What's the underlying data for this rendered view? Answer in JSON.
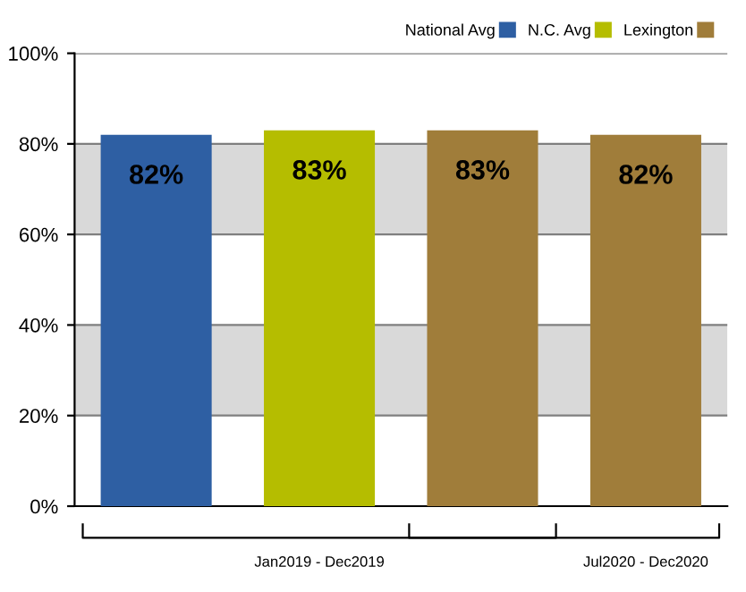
{
  "chart_data": {
    "type": "bar",
    "categories": [
      null,
      "Jan2019 - Dec2019",
      null,
      "Jul2020 - Dec2020"
    ],
    "series": [
      {
        "name": "National Avg",
        "color": "#2e5fa3",
        "values": [
          82,
          null,
          null,
          null
        ],
        "value_labels": [
          "82%",
          null,
          null,
          null
        ]
      },
      {
        "name": "N.C. Avg",
        "color": "#b5bd00",
        "values": [
          null,
          83,
          null,
          null
        ],
        "value_labels": [
          null,
          "83%",
          null,
          null
        ]
      },
      {
        "name": "Lexington",
        "color": "#a07d3a",
        "values": [
          null,
          null,
          83,
          82
        ],
        "value_labels": [
          null,
          null,
          "83%",
          "82%"
        ]
      }
    ],
    "ylim": [
      0,
      100
    ],
    "yticks": [
      {
        "value": 0,
        "label": "0%"
      },
      {
        "value": 20,
        "label": "20%"
      },
      {
        "value": 40,
        "label": "40%"
      },
      {
        "value": 60,
        "label": "60%"
      },
      {
        "value": 80,
        "label": "80%"
      },
      {
        "value": 100,
        "label": "100%"
      }
    ],
    "bands": [
      {
        "axis": "y",
        "from": 20,
        "to": 40,
        "color": "#d9d9d9"
      },
      {
        "axis": "y",
        "from": 60,
        "to": 80,
        "color": "#d9d9d9"
      }
    ],
    "grid": "y",
    "legend": "top right"
  }
}
